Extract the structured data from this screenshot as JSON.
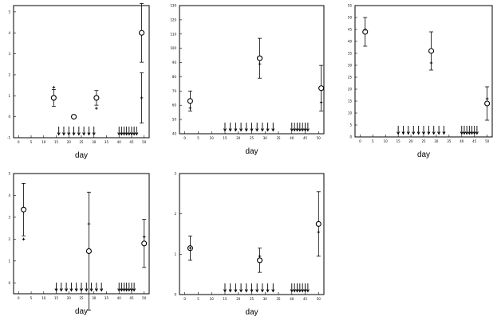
{
  "chart_data": [
    {
      "type": "scatter",
      "xlabel": "day",
      "xlim": [
        -2,
        52
      ],
      "ylim": [
        -1,
        5.3
      ],
      "xticks": [
        0,
        5,
        10,
        15,
        20,
        25,
        30,
        35,
        40,
        45,
        50
      ],
      "yticks": [
        -1,
        0,
        1,
        2,
        3,
        4,
        5
      ],
      "series": [
        {
          "marker": "open-circle",
          "points": [
            {
              "x": 14,
              "y": 0.9,
              "err": 0.4
            },
            {
              "x": 22,
              "y": 0.0,
              "err": 0.05
            },
            {
              "x": 31,
              "y": 0.9,
              "err": 0.35
            },
            {
              "x": 49,
              "y": 4.0,
              "err": 1.4
            }
          ]
        },
        {
          "marker": "plus",
          "points": [
            {
              "x": 14,
              "y": 1.4
            },
            {
              "x": 31,
              "y": 0.4
            },
            {
              "x": 49,
              "y": 0.9,
              "err": 1.2
            }
          ]
        }
      ],
      "arrows": [
        16,
        18,
        20,
        22,
        24,
        26,
        28,
        30,
        40,
        41,
        42,
        43,
        44,
        45,
        46,
        47
      ]
    },
    {
      "type": "scatter",
      "xlabel": "day",
      "xlim": [
        -2,
        52
      ],
      "ylim": [
        40,
        130
      ],
      "xticks": [
        0,
        5,
        10,
        15,
        20,
        25,
        30,
        35,
        40,
        45,
        50
      ],
      "yticks": [
        40,
        50,
        60,
        70,
        80,
        90,
        100,
        110,
        120,
        130
      ],
      "series": [
        {
          "marker": "open-circle",
          "points": [
            {
              "x": 2,
              "y": 63,
              "err": 7
            },
            {
              "x": 28,
              "y": 93,
              "err": 14
            },
            {
              "x": 51,
              "y": 72,
              "err": 16
            }
          ]
        },
        {
          "marker": "plus",
          "points": [
            {
              "x": 2,
              "y": 58
            },
            {
              "x": 28,
              "y": 89
            },
            {
              "x": 51,
              "y": 62
            }
          ]
        }
      ],
      "arrows": [
        15,
        17,
        19,
        21,
        23,
        25,
        27,
        29,
        31,
        33,
        40,
        41,
        42,
        43,
        44,
        45,
        46
      ]
    },
    {
      "type": "scatter",
      "xlabel": "day",
      "xlim": [
        -2,
        52
      ],
      "ylim": [
        0,
        55
      ],
      "xticks": [
        0,
        5,
        10,
        15,
        20,
        25,
        30,
        35,
        40,
        45,
        50
      ],
      "yticks": [
        0,
        5,
        10,
        15,
        20,
        25,
        30,
        35,
        40,
        45,
        50,
        55
      ],
      "series": [
        {
          "marker": "open-circle",
          "points": [
            {
              "x": 2,
              "y": 44,
              "err": 6
            },
            {
              "x": 28,
              "y": 36,
              "err": 8
            },
            {
              "x": 50,
              "y": 14,
              "err": 7
            }
          ]
        },
        {
          "marker": "plus",
          "points": [
            {
              "x": 2,
              "y": 45
            },
            {
              "x": 28,
              "y": 31
            },
            {
              "x": 50,
              "y": 16
            }
          ]
        }
      ],
      "arrows": [
        15,
        17,
        19,
        21,
        23,
        25,
        27,
        29,
        31,
        33,
        40,
        41,
        42,
        43,
        44,
        45,
        46
      ]
    },
    {
      "type": "scatter",
      "xlabel": "day",
      "xlim": [
        -2,
        52
      ],
      "ylim": [
        -0.5,
        5
      ],
      "xticks": [
        0,
        5,
        10,
        15,
        20,
        25,
        30,
        35,
        40,
        45,
        50
      ],
      "yticks": [
        0,
        1,
        2,
        3,
        4,
        5
      ],
      "series": [
        {
          "marker": "open-circle",
          "points": [
            {
              "x": 2,
              "y": 3.35,
              "err": 1.2
            },
            {
              "x": 28,
              "y": 1.45,
              "err": 2.7
            },
            {
              "x": 50,
              "y": 1.8,
              "err": 1.1
            }
          ]
        },
        {
          "marker": "plus",
          "points": [
            {
              "x": 2,
              "y": 2.0
            },
            {
              "x": 28,
              "y": 2.7
            },
            {
              "x": 50,
              "y": 2.1
            }
          ]
        }
      ],
      "arrows": [
        15,
        17,
        19,
        21,
        23,
        25,
        27,
        29,
        31,
        33,
        40,
        41,
        42,
        43,
        44,
        45,
        46
      ]
    },
    {
      "type": "scatter",
      "xlabel": "day",
      "xlim": [
        -2,
        52
      ],
      "ylim": [
        0,
        3
      ],
      "xticks": [
        0,
        5,
        10,
        15,
        20,
        25,
        30,
        35,
        40,
        45,
        50
      ],
      "yticks": [
        0,
        1,
        2,
        3
      ],
      "series": [
        {
          "marker": "open-circle",
          "points": [
            {
              "x": 2,
              "y": 1.15,
              "err": 0.3
            },
            {
              "x": 28,
              "y": 0.85,
              "err": 0.3
            },
            {
              "x": 50,
              "y": 1.75,
              "err": 0.8
            }
          ]
        },
        {
          "marker": "plus",
          "points": [
            {
              "x": 2,
              "y": 1.15
            },
            {
              "x": 28,
              "y": 0.95
            },
            {
              "x": 50,
              "y": 1.55
            }
          ]
        }
      ],
      "arrows": [
        15,
        17,
        19,
        21,
        23,
        25,
        27,
        29,
        31,
        33,
        40,
        41,
        42,
        43,
        44,
        45,
        46
      ]
    }
  ]
}
